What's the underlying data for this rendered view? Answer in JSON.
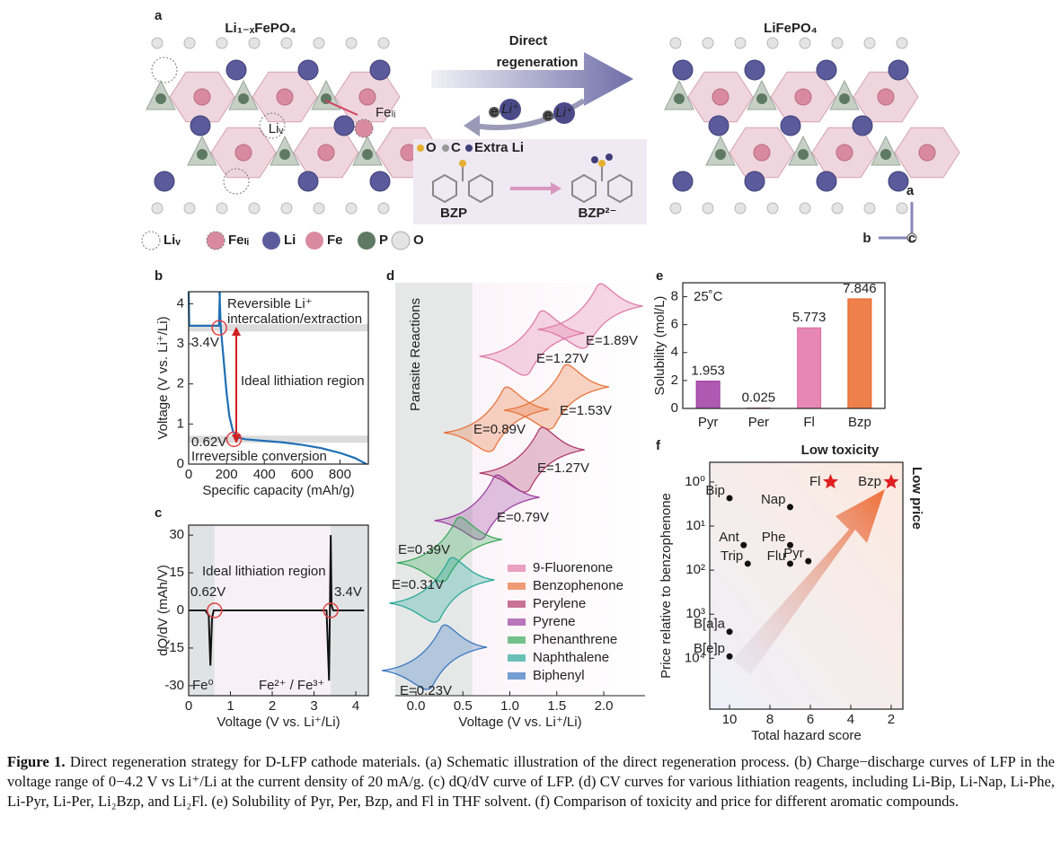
{
  "panel_a": {
    "letter": "a",
    "left_title": "Li₁₋ₓFePO₄",
    "right_title": "LiFePO₄",
    "arrow_label": [
      "Direct",
      "regeneration"
    ],
    "li_v": "Liᵥ",
    "fe_li": "Feₗᵢ",
    "ion": "Li⁺",
    "electron": "e",
    "species_legend": [
      "O",
      "C",
      "Extra Li"
    ],
    "bzp": "BZP",
    "bzp2": "BZP²⁻",
    "legend": [
      "Liᵥ",
      "Feₗᵢ",
      "Li",
      "Fe",
      "P",
      "O"
    ],
    "axes": [
      "a",
      "b",
      "c"
    ]
  },
  "panel_b": {
    "letter": "b",
    "xlabel": "Specific capacity (mAh/g)",
    "ylabel": "Voltage (V vs. Li⁺/Li)",
    "xlim": [
      0,
      950
    ],
    "xticks": [
      0,
      200,
      400,
      600,
      800
    ],
    "ylim": [
      0,
      4.3
    ],
    "yticks": [
      0,
      1,
      2,
      3,
      4
    ],
    "color": "#1f6fb5",
    "annotations": {
      "top": [
        "Reversible Li⁺",
        "intercalation/extraction"
      ],
      "middle": "Ideal lithiation region",
      "bottom": "Irreversible conversion"
    },
    "markers": {
      "x": [
        162,
        240
      ],
      "values": [
        3.4,
        0.62
      ],
      "value_labels": [
        "3.4V",
        "0.62V"
      ]
    },
    "series": [
      {
        "x": [
          0,
          3,
          160,
          165
        ],
        "y": [
          4.3,
          3.45,
          3.45,
          4.3
        ]
      },
      {
        "x": [
          163,
          170,
          185,
          200,
          215,
          235,
          260,
          300,
          400,
          500,
          600,
          700,
          800,
          880,
          940
        ],
        "y": [
          4.3,
          3.4,
          2.6,
          1.8,
          1.2,
          0.8,
          0.66,
          0.62,
          0.58,
          0.54,
          0.48,
          0.4,
          0.28,
          0.15,
          0
        ]
      }
    ]
  },
  "panel_c": {
    "letter": "c",
    "xlabel": "Voltage (V vs. Li⁺/Li)",
    "ylabel": "dQ/dV (mAh/V)",
    "xlim": [
      0,
      4.3
    ],
    "xticks": [
      0,
      1,
      2,
      3,
      4
    ],
    "ylim": [
      -34,
      34
    ],
    "yticks": [
      30,
      15,
      0,
      -15,
      -30
    ],
    "color": "#111111",
    "region_label": "Ideal lithiation region",
    "notes": [
      "Fe⁰",
      "Fe²⁺ / Fe³⁺"
    ],
    "markers": {
      "values": [
        0.62,
        3.4
      ],
      "value_labels": [
        "0.62V",
        "3.4V"
      ]
    },
    "series": {
      "x": [
        0,
        0.4,
        0.48,
        0.52,
        0.56,
        0.6,
        3.3,
        3.36,
        3.38,
        3.4,
        3.42,
        3.46,
        4.2
      ],
      "y": [
        0,
        0,
        -2,
        -22,
        -3,
        0,
        0,
        -28,
        0,
        30,
        2,
        0,
        0
      ]
    }
  },
  "panel_d": {
    "letter": "d",
    "xlabel": "Voltage (V vs. Li⁺/Li)",
    "xlim": [
      -0.22,
      2.44
    ],
    "xticks": [
      {
        "value": 0,
        "label": "0.0"
      },
      0.5,
      {
        "value": 1,
        "label": "1.0"
      },
      1.5,
      {
        "value": 2,
        "label": "2.0"
      }
    ],
    "shaded_label": "Parasite Reactions",
    "shaded_to": 0.6,
    "reagents": [
      {
        "name": "9-Fluorenone",
        "color": "#e07aa8",
        "potentials": [
          1.27,
          1.89
        ],
        "value_labels": [
          "E=1.27V",
          "E=1.89V"
        ]
      },
      {
        "name": "Benzophenone",
        "color": "#e8743b",
        "potentials": [
          0.89,
          1.53
        ],
        "value_labels": [
          "E=0.89V",
          "E=1.53V"
        ]
      },
      {
        "name": "Perylene",
        "color": "#b03a6a",
        "potentials": [
          1.27
        ],
        "value_labels": [
          "E=1.27V"
        ]
      },
      {
        "name": "Pyrene",
        "color": "#9b3fa0",
        "potentials": [
          0.79
        ],
        "value_labels": [
          "E=0.79V"
        ]
      },
      {
        "name": "Phenanthrene",
        "color": "#3aaa5a",
        "potentials": [
          0.39
        ],
        "value_labels": [
          "E=0.39V"
        ]
      },
      {
        "name": "Naphthalene",
        "color": "#2aa89a",
        "potentials": [
          0.31
        ],
        "value_labels": [
          "E=0.31V"
        ]
      },
      {
        "name": "Biphenyl",
        "color": "#3a78c0",
        "potentials": [
          0.23
        ],
        "value_labels": [
          "E=0.23V"
        ]
      }
    ]
  },
  "panel_e": {
    "letter": "e",
    "type": "bar",
    "ylabel": "Solubility (mol/L)",
    "temperature": "25˚C",
    "categories": [
      "Pyr",
      "Per",
      "Fl",
      "Bzp"
    ],
    "values": [
      1.953,
      0.025,
      5.773,
      7.846
    ],
    "colors": [
      "#9b2fa0",
      "#b03a6a",
      "#e06aa0",
      "#e8601e"
    ],
    "ylim": [
      0,
      9
    ],
    "yticks": [
      0,
      2,
      4,
      6,
      8
    ]
  },
  "panel_f": {
    "letter": "f",
    "type": "scatter",
    "xlabel": "Total hazard score",
    "ylabel": "Price relative to benzophenone",
    "xlim": [
      10.98,
      1.42
    ],
    "xticks": [
      10,
      8,
      6,
      4,
      2
    ],
    "yscale": "log",
    "ylim": [
      7e-06,
      2.8
    ],
    "yticks": [
      {
        "value": 1,
        "label": "10⁰"
      },
      {
        "value": 0.1,
        "label": "10¹"
      },
      {
        "value": 0.01,
        "label": "10²"
      },
      {
        "value": 0.001,
        "label": "10³"
      },
      {
        "value": 0.0001,
        "label": "10⁴"
      }
    ],
    "notes": [
      "Low toxicity",
      "Low price"
    ],
    "star_color": "#e02020",
    "points": [
      {
        "name": "Bip",
        "x": 10,
        "y": 0.43
      },
      {
        "name": "Nap",
        "x": 7,
        "y": 0.27
      },
      {
        "name": "Ant",
        "x": 9.3,
        "y": 0.037
      },
      {
        "name": "Phe",
        "x": 7,
        "y": 0.037
      },
      {
        "name": "Trip",
        "x": 9.1,
        "y": 0.014
      },
      {
        "name": "Flu",
        "x": 7,
        "y": 0.014
      },
      {
        "name": "Pyr",
        "x": 6.1,
        "y": 0.016
      },
      {
        "name": "B[a]a",
        "x": 10,
        "y": 0.0004
      },
      {
        "name": "B[e]p",
        "x": 10,
        "y": 0.00011
      },
      {
        "name": "Fl",
        "x": 5,
        "y": 1,
        "marker": "star"
      },
      {
        "name": "Bzp",
        "x": 2,
        "y": 1,
        "marker": "star"
      }
    ]
  },
  "caption": {
    "label": "Figure 1.",
    "text": "Direct regeneration strategy for D-LFP cathode materials. (a) Schematic illustration of the direct regeneration process. (b) Charge−discharge curves of LFP in the voltage range of 0−4.2 V vs Li⁺/Li at the current density of 20 mA/g. (c) dQ/dV curve of LFP. (d) CV curves for various lithiation reagents, including Li-Bip, Li-Nap, Li-Phe, Li-Pyr, Li-Per, Li₂Bzp, and Li₂Fl. (e) Solubility of Pyr, Per, Bzp, and Fl in THF solvent. (f) Comparison of toxicity and price for different aromatic compounds."
  }
}
